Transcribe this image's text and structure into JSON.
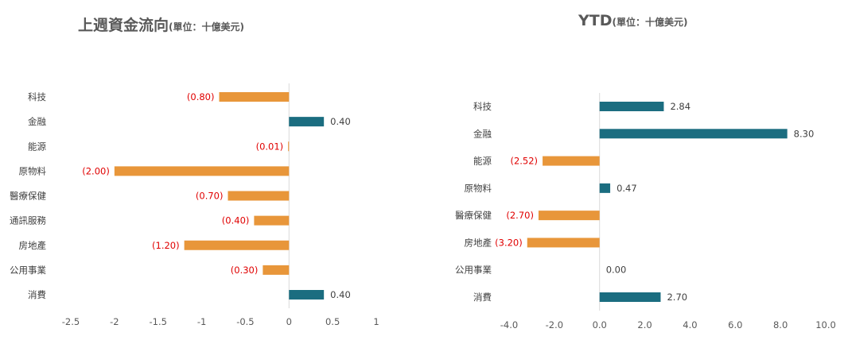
{
  "colors": {
    "positive": "#1b6d80",
    "negative": "#e8963a",
    "negative_label": "#e00000",
    "positive_label": "#404040",
    "axis": "#d9d9d9"
  },
  "chart_data": [
    {
      "type": "bar",
      "orientation": "horizontal",
      "title": "上週資金流向",
      "unit": "(單位：十億美元)",
      "categories": [
        "科技",
        "金融",
        "能源",
        "原物料",
        "醫療保健",
        "通訊服務",
        "房地產",
        "公用事業",
        "消費"
      ],
      "values": [
        -0.8,
        0.4,
        -0.01,
        -2.0,
        -0.7,
        -0.4,
        -1.2,
        -0.3,
        0.4
      ],
      "data_labels": [
        "(0.80)",
        "0.40",
        "(0.01)",
        "(2.00)",
        "(0.70)",
        "(0.40)",
        "(1.20)",
        "(0.30)",
        "0.40"
      ],
      "xlim": [
        -2.5,
        1
      ],
      "xticks": [
        -2.5,
        -2,
        -1.5,
        -1,
        -0.5,
        0,
        0.5,
        1
      ],
      "xtick_labels": [
        "-2.5",
        "-2",
        "-1.5",
        "-1",
        "-0.5",
        "0",
        "0.5",
        "1"
      ],
      "grid": false,
      "legend": "none"
    },
    {
      "type": "bar",
      "orientation": "horizontal",
      "title": "YTD",
      "unit": "(單位：十億美元)",
      "categories": [
        "科技",
        "金融",
        "能源",
        "原物料",
        "醫療保健",
        "房地產",
        "公用事業",
        "消費"
      ],
      "values": [
        2.84,
        8.3,
        -2.52,
        0.47,
        -2.7,
        -3.2,
        0.0,
        2.7
      ],
      "data_labels": [
        "2.84",
        "8.30",
        "(2.52)",
        "0.47",
        "(2.70)",
        "(3.20)",
        "0.00",
        "2.70"
      ],
      "xlim": [
        -4.0,
        10.0
      ],
      "xticks": [
        -4,
        -2,
        0,
        2,
        4,
        6,
        8,
        10
      ],
      "xtick_labels": [
        "-4.0",
        "-2.0",
        "0.0",
        "2.0",
        "4.0",
        "6.0",
        "8.0",
        "10.0"
      ],
      "grid": false,
      "legend": "none"
    }
  ]
}
